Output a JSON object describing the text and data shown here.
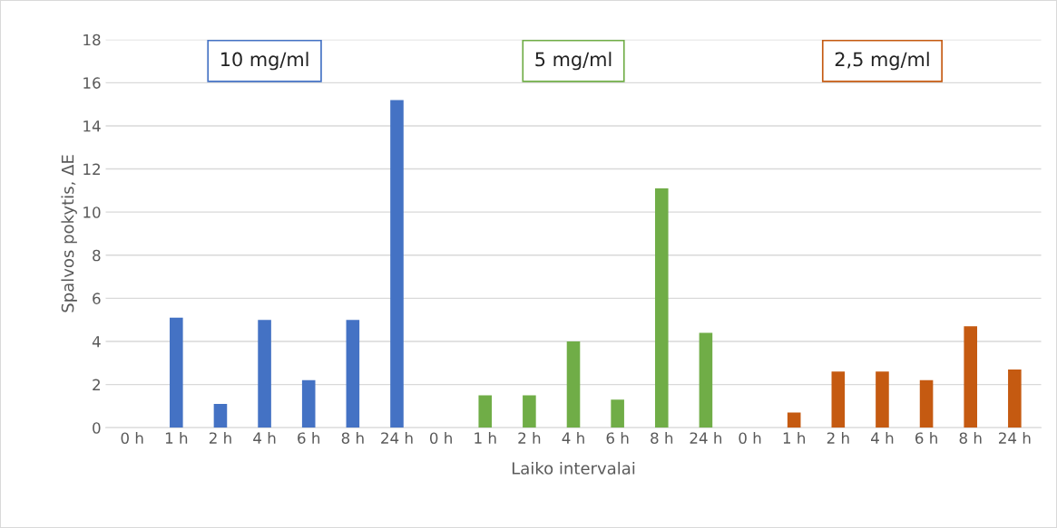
{
  "chart_data": {
    "type": "bar",
    "xlabel": "Laiko intervalai",
    "ylabel": "Spalvos pokytis, ΔE",
    "categories": [
      "0 h",
      "1 h",
      "2 h",
      "4 h",
      "6 h",
      "8 h",
      "24 h",
      "0 h",
      "1 h",
      "2 h",
      "4 h",
      "6 h",
      "8 h",
      "24 h",
      "0 h",
      "1 h",
      "2 h",
      "4 h",
      "6 h",
      "8 h",
      "24 h"
    ],
    "series": [
      {
        "name": "10 mg/ml",
        "color": "#4472c4",
        "values": [
          0,
          5.1,
          1.1,
          5.0,
          2.2,
          5.0,
          15.2,
          null,
          null,
          null,
          null,
          null,
          null,
          null,
          null,
          null,
          null,
          null,
          null,
          null,
          null
        ]
      },
      {
        "name": "5 mg/ml",
        "color": "#70ad47",
        "values": [
          null,
          null,
          null,
          null,
          null,
          null,
          null,
          0,
          1.5,
          1.5,
          4.0,
          1.3,
          11.1,
          4.4,
          null,
          null,
          null,
          null,
          null,
          null,
          null
        ]
      },
      {
        "name": "2,5 mg/ml",
        "color": "#c55a11",
        "values": [
          null,
          null,
          null,
          null,
          null,
          null,
          null,
          null,
          null,
          null,
          null,
          null,
          null,
          null,
          0,
          0.7,
          2.6,
          2.6,
          2.2,
          4.7,
          2.7
        ]
      }
    ],
    "ylim": [
      0,
      18
    ],
    "yticks": [
      0,
      2,
      4,
      6,
      8,
      10,
      12,
      14,
      16,
      18
    ],
    "grid": "y",
    "legend": false
  }
}
